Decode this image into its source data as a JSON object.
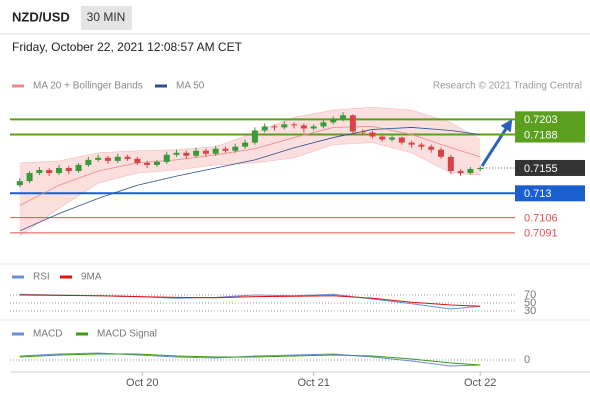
{
  "chart_data": {
    "type": "candlestick",
    "title": "NZD/USD",
    "timeframe": "30 MIN",
    "subtitle": "Friday, October 22, 2021 12:08:57 AM CET",
    "credit": "Research © 2021 Trading Central",
    "up_color": "#3a9a3a",
    "down_color": "#d64545",
    "xlim": [
      -1,
      48
    ],
    "xticks": [
      {
        "value": 12.5,
        "label": "Oct 20"
      },
      {
        "value": 30,
        "label": "Oct 21"
      },
      {
        "value": 47,
        "label": "Oct 22"
      }
    ],
    "ylim": [
      0.7079,
      0.7227
    ],
    "candles": [
      [
        0.7138,
        0.7145,
        0.7136,
        0.7142
      ],
      [
        0.7142,
        0.7152,
        0.714,
        0.715
      ],
      [
        0.715,
        0.7156,
        0.7148,
        0.7153
      ],
      [
        0.7153,
        0.7155,
        0.7147,
        0.715
      ],
      [
        0.715,
        0.7158,
        0.7148,
        0.7155
      ],
      [
        0.7155,
        0.7157,
        0.7149,
        0.7152
      ],
      [
        0.7152,
        0.716,
        0.715,
        0.7158
      ],
      [
        0.7158,
        0.7166,
        0.7156,
        0.7163
      ],
      [
        0.7163,
        0.7168,
        0.7161,
        0.7165
      ],
      [
        0.7165,
        0.7167,
        0.7159,
        0.7162
      ],
      [
        0.7162,
        0.7169,
        0.716,
        0.7166
      ],
      [
        0.7166,
        0.7168,
        0.7162,
        0.7164
      ],
      [
        0.7164,
        0.7166,
        0.7158,
        0.716
      ],
      [
        0.716,
        0.7162,
        0.7155,
        0.7158
      ],
      [
        0.7158,
        0.7163,
        0.7156,
        0.7161
      ],
      [
        0.7161,
        0.7171,
        0.7159,
        0.7168
      ],
      [
        0.7168,
        0.7173,
        0.7166,
        0.717
      ],
      [
        0.717,
        0.7172,
        0.7164,
        0.7167
      ],
      [
        0.7167,
        0.7175,
        0.7165,
        0.7172
      ],
      [
        0.7172,
        0.7174,
        0.7166,
        0.7169
      ],
      [
        0.7169,
        0.7177,
        0.7167,
        0.7174
      ],
      [
        0.7174,
        0.7176,
        0.717,
        0.7172
      ],
      [
        0.7172,
        0.7179,
        0.717,
        0.7176
      ],
      [
        0.7176,
        0.7183,
        0.7174,
        0.718
      ],
      [
        0.718,
        0.7195,
        0.7178,
        0.7192
      ],
      [
        0.7192,
        0.7199,
        0.719,
        0.7196
      ],
      [
        0.7196,
        0.7198,
        0.7192,
        0.7195
      ],
      [
        0.7195,
        0.7201,
        0.7193,
        0.7198
      ],
      [
        0.7198,
        0.72,
        0.7194,
        0.7197
      ],
      [
        0.7197,
        0.7199,
        0.719,
        0.7194
      ],
      [
        0.7194,
        0.7198,
        0.7192,
        0.7196
      ],
      [
        0.7196,
        0.7202,
        0.7194,
        0.72
      ],
      [
        0.72,
        0.7206,
        0.7198,
        0.7203
      ],
      [
        0.7203,
        0.721,
        0.7201,
        0.7207
      ],
      [
        0.7207,
        0.7208,
        0.7188,
        0.7191
      ],
      [
        0.7191,
        0.7193,
        0.7187,
        0.719
      ],
      [
        0.719,
        0.7192,
        0.7184,
        0.7186
      ],
      [
        0.7186,
        0.7188,
        0.7181,
        0.7183
      ],
      [
        0.7183,
        0.7187,
        0.7181,
        0.7185
      ],
      [
        0.7185,
        0.7186,
        0.7178,
        0.718
      ],
      [
        0.718,
        0.7182,
        0.7175,
        0.7178
      ],
      [
        0.7178,
        0.718,
        0.7173,
        0.7176
      ],
      [
        0.7176,
        0.7178,
        0.717,
        0.7173
      ],
      [
        0.7173,
        0.7175,
        0.7164,
        0.7166
      ],
      [
        0.7166,
        0.7168,
        0.7149,
        0.7152
      ],
      [
        0.7152,
        0.7154,
        0.7147,
        0.715
      ],
      [
        0.715,
        0.7156,
        0.7148,
        0.7154
      ],
      [
        0.7154,
        0.7157,
        0.7152,
        0.7155
      ]
    ],
    "overlays": {
      "x": [
        0,
        4,
        8,
        12,
        16,
        20,
        24,
        28,
        32,
        36,
        40,
        44,
        47
      ],
      "series": [
        {
          "name": "MA 20 + Bollinger Bands",
          "color": "#f08a8a",
          "values": [
            0.7118,
            0.7138,
            0.7152,
            0.716,
            0.7163,
            0.7168,
            0.7174,
            0.7185,
            0.7195,
            0.7196,
            0.7188,
            0.7175,
            0.7166
          ],
          "upper": [
            0.716,
            0.7162,
            0.717,
            0.7172,
            0.7173,
            0.7176,
            0.719,
            0.7205,
            0.7212,
            0.7215,
            0.7212,
            0.72,
            0.7183
          ],
          "lower": [
            0.7088,
            0.7115,
            0.714,
            0.715,
            0.7153,
            0.7158,
            0.716,
            0.7165,
            0.7178,
            0.718,
            0.717,
            0.715,
            0.7148
          ]
        },
        {
          "name": "MA 50",
          "color": "#2b4f8e",
          "values": [
            0.7093,
            0.711,
            0.7125,
            0.7138,
            0.7147,
            0.7155,
            0.7163,
            0.7175,
            0.7185,
            0.7193,
            0.7195,
            0.7192,
            0.7188
          ]
        }
      ]
    },
    "levels": [
      {
        "value": 0.7203,
        "style": "box",
        "color": "#5aa01e"
      },
      {
        "value": 0.7188,
        "style": "box",
        "color": "#5aa01e"
      },
      {
        "value": 0.7155,
        "style": "current",
        "color": "#333333"
      },
      {
        "value": 0.713,
        "style": "box",
        "color": "#1a5fd0"
      },
      {
        "value": 0.7106,
        "style": "text",
        "color": "#e05050"
      },
      {
        "value": 0.7091,
        "style": "text",
        "color": "#e05050"
      }
    ],
    "rsi": {
      "ylim": [
        12.5,
        87.5
      ],
      "yticks": [
        70,
        50,
        30
      ],
      "x": [
        0,
        4,
        8,
        12,
        16,
        20,
        24,
        28,
        32,
        36,
        40,
        44,
        47
      ],
      "series": [
        {
          "name": "RSI",
          "color": "#6b8fd6",
          "values": [
            72,
            70,
            68,
            66,
            62,
            64,
            70,
            68,
            72,
            60,
            48,
            35,
            42
          ]
        },
        {
          "name": "9MA",
          "color": "#dd1111",
          "values": [
            70,
            69,
            68,
            66,
            64,
            63,
            66,
            67,
            68,
            62,
            52,
            45,
            42
          ]
        }
      ]
    },
    "macd": {
      "ylim": [
        -0.0018,
        0.0018
      ],
      "yticks": [
        0
      ],
      "x": [
        0,
        4,
        8,
        12,
        16,
        20,
        24,
        28,
        32,
        36,
        40,
        44,
        47
      ],
      "series": [
        {
          "name": "MACD",
          "color": "#6b8fd6",
          "values": [
            0.0004,
            0.0006,
            0.0007,
            0.0005,
            0.0003,
            0.0002,
            0.0004,
            0.0005,
            0.0006,
            0.0003,
            -0.0001,
            -0.0006,
            -0.0005
          ]
        },
        {
          "name": "MACD Signal",
          "color": "#3a9a1a",
          "values": [
            0.0003,
            0.0005,
            0.0006,
            0.0006,
            0.0004,
            0.0003,
            0.0003,
            0.0004,
            0.0005,
            0.0004,
            0.0001,
            -0.0003,
            -0.0005
          ]
        }
      ]
    }
  }
}
